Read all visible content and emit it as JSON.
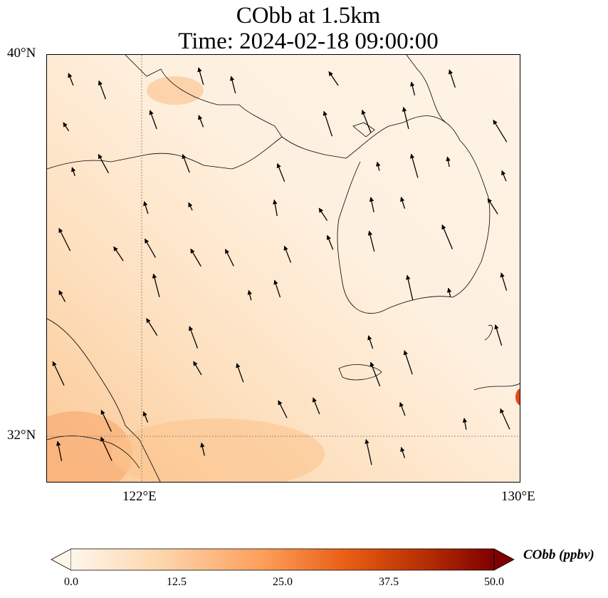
{
  "title": {
    "line1": "CObb at 1.5km",
    "line2": "Time: 2024-02-18 09:00:00"
  },
  "axes": {
    "y_ticks": [
      "40°N",
      "32°N"
    ],
    "x_ticks": [
      "122°E",
      "130°E"
    ]
  },
  "extent": {
    "lon": [
      120,
      130
    ],
    "lat": [
      31,
      40
    ]
  },
  "colorbar": {
    "label": "CObb (ppbv)",
    "ticks": [
      "0.0",
      "12.5",
      "25.0",
      "37.5",
      "50.0"
    ],
    "range": [
      0,
      50
    ],
    "colormap": [
      "#fff5eb",
      "#fdd8b0",
      "#fd9f5c",
      "#e95e14",
      "#b22b02",
      "#7f0000"
    ],
    "extend": "both"
  },
  "colors": {
    "background_field": "#fdebd5",
    "coastline": "#000000",
    "gridline": "#777777"
  }
}
